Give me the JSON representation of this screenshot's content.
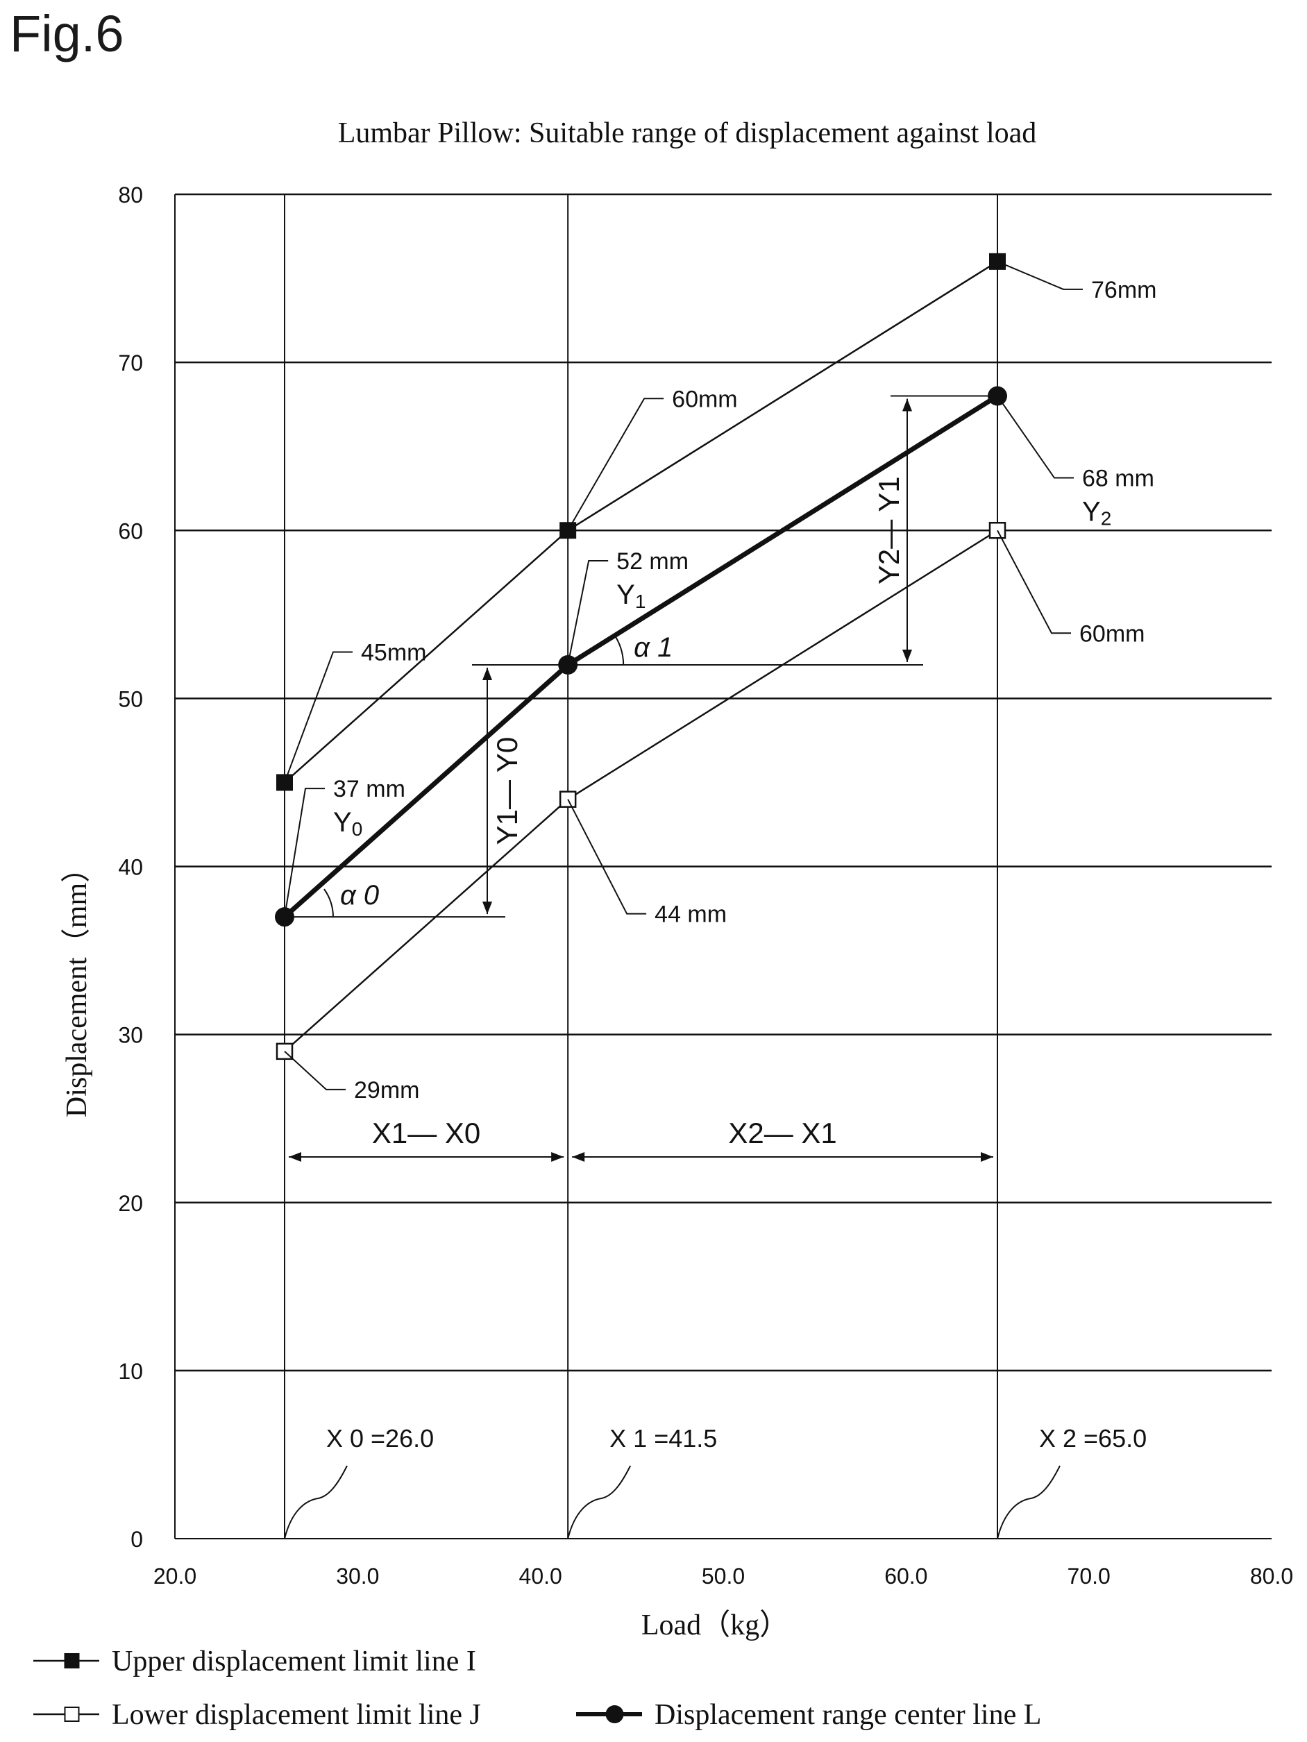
{
  "figure_label": "Fig.6",
  "chart_data": {
    "type": "line",
    "title": "Lumbar Pillow: Suitable range of displacement against load",
    "xlabel": "Load（kg）",
    "ylabel": "Displacement（mm）",
    "xlim": [
      20.0,
      80.0
    ],
    "ylim": [
      0,
      80
    ],
    "x_ticks": [
      20.0,
      30.0,
      40.0,
      50.0,
      60.0,
      70.0,
      80.0
    ],
    "x_tick_labels": [
      "20.0",
      "30.0",
      "40.0",
      "50.0",
      "60.0",
      "70.0",
      "80.0"
    ],
    "y_ticks": [
      0,
      10,
      20,
      30,
      40,
      50,
      60,
      70,
      80
    ],
    "y_tick_labels": [
      "0",
      "10",
      "20",
      "30",
      "40",
      "50",
      "60",
      "70",
      "80"
    ],
    "grid": "horizontal",
    "legend_position": "bottom",
    "x": [
      26.0,
      41.5,
      65.0
    ],
    "series": [
      {
        "name": "Upper displacement limit line I",
        "values": [
          45,
          60,
          76
        ],
        "marker": "filled-square",
        "color": "#111111"
      },
      {
        "name": "Lower displacement limit line J",
        "values": [
          29,
          44,
          60
        ],
        "marker": "open-square",
        "color": "#111111"
      },
      {
        "name": "Displacement range center line L",
        "values": [
          37,
          52,
          68
        ],
        "marker": "filled-circle",
        "color": "#111111",
        "bold": true
      }
    ],
    "vertical_markers": [
      {
        "x": 26.0,
        "label": "X 0 =26.0"
      },
      {
        "x": 41.5,
        "label": "X 1 =41.5"
      },
      {
        "x": 65.0,
        "label": "X 2 =65.0"
      }
    ],
    "point_annotations": [
      {
        "series": 0,
        "index": 0,
        "text": "45mm"
      },
      {
        "series": 0,
        "index": 1,
        "text": "60mm"
      },
      {
        "series": 0,
        "index": 2,
        "text": "76mm"
      },
      {
        "series": 2,
        "index": 0,
        "text": "37 mm",
        "sub": "Y0"
      },
      {
        "series": 2,
        "index": 1,
        "text": "52 mm",
        "sub": "Y1"
      },
      {
        "series": 2,
        "index": 2,
        "text": "68 mm",
        "sub": "Y2"
      },
      {
        "series": 1,
        "index": 0,
        "text": "29mm"
      },
      {
        "series": 1,
        "index": 1,
        "text": "44 mm"
      },
      {
        "series": 1,
        "index": 2,
        "text": "60mm"
      }
    ],
    "dimension_labels": {
      "x_span_1": "X1— X0",
      "x_span_2": "X2— X1",
      "y_span_1": "Y1— Y0",
      "y_span_2": "Y2— Y1",
      "angle_0": "α 0",
      "angle_1": "α 1"
    }
  }
}
